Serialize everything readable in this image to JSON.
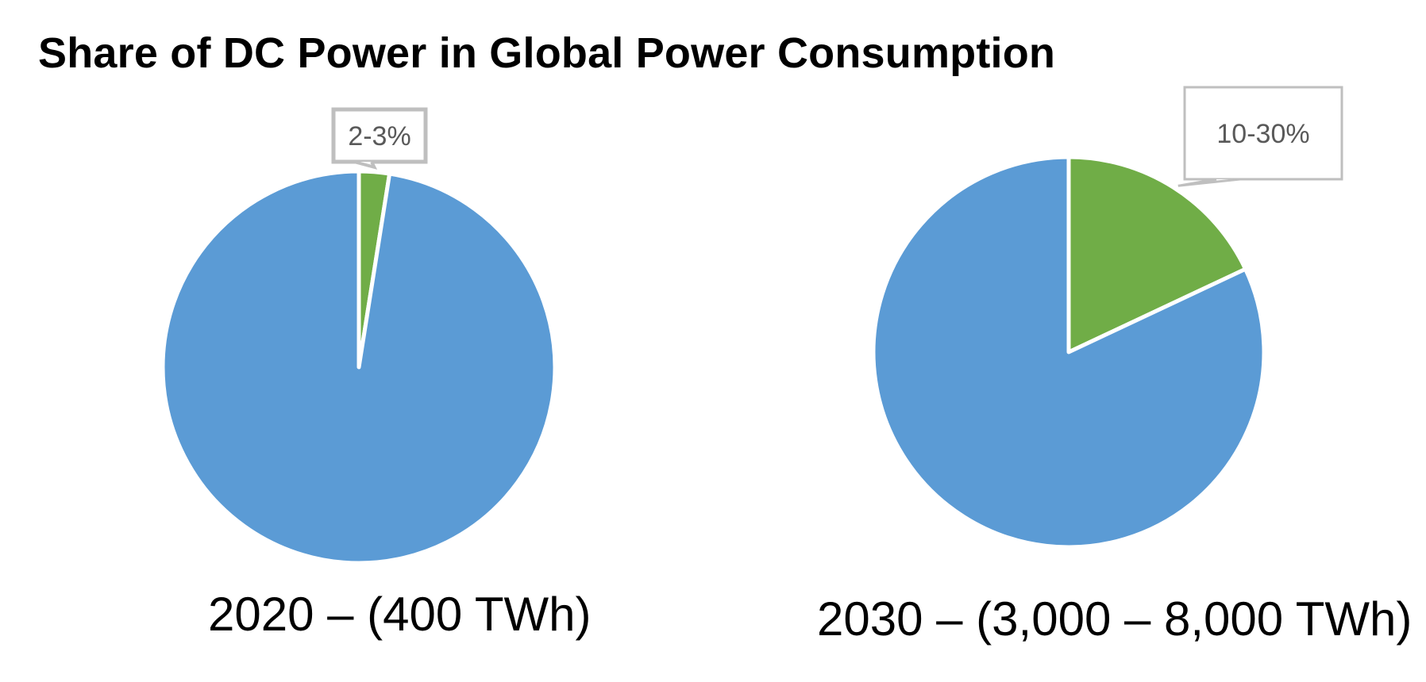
{
  "title": "Share of DC Power in Global Power Consumption",
  "colors": {
    "dc_share": "#70AD47",
    "other": "#5B9BD5",
    "slice_border": "#FFFFFF",
    "callout_border": "#BFBFBF",
    "callout_text": "#595959"
  },
  "chart_data": [
    {
      "type": "pie",
      "title": "2020 – (400 TWh)",
      "slices": [
        {
          "label": "2-3%",
          "value": 2.5
        },
        {
          "label": "",
          "value": 97.5
        }
      ],
      "data_labels": [
        "2-3%"
      ]
    },
    {
      "type": "pie",
      "title": "2030 – (3,000 – 8,000 TWh)",
      "slices": [
        {
          "label": "10-30%",
          "value": 18
        },
        {
          "label": "",
          "value": 82
        }
      ],
      "data_labels": [
        "10-30%"
      ]
    }
  ]
}
